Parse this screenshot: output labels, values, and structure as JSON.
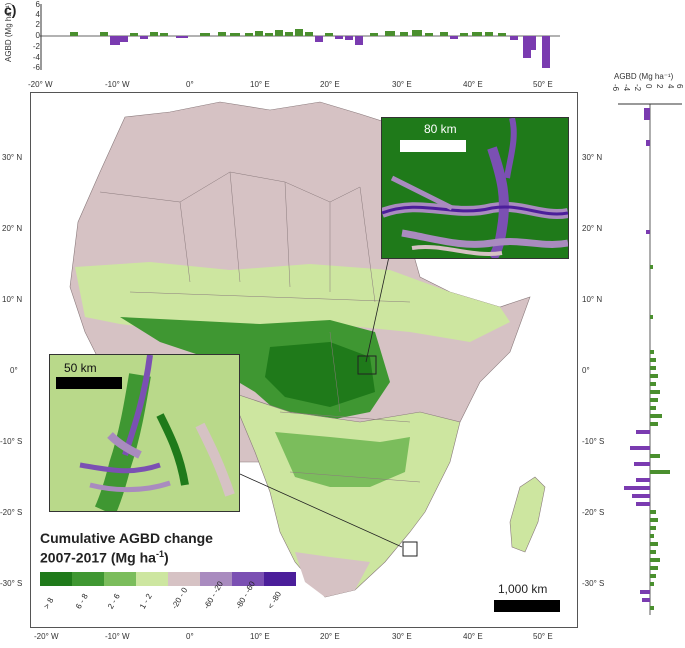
{
  "panel_label": "c)",
  "top_hist": {
    "ylabel": "AGBD (Mg ha⁻¹)",
    "yticks": [
      "6",
      "4",
      "2",
      "0",
      "-2",
      "-4",
      "-6"
    ]
  },
  "right_hist": {
    "xlabel": "AGBD (Mg ha⁻¹)",
    "xticks": [
      "-6",
      "-4",
      "-2",
      "0",
      "2",
      "4",
      "6"
    ]
  },
  "map": {
    "lon_ticks": [
      "-20° W",
      "-10° W",
      "0°",
      "10° E",
      "20° E",
      "30° E",
      "40° E",
      "50° E"
    ],
    "lat_ticks": [
      "30° N",
      "20° N",
      "10° N",
      "0°",
      "-10° S",
      "-20° S",
      "-30° S"
    ],
    "legend": {
      "title_line1": "Cumulative AGBD change",
      "title_line2": "2007-2017 (Mg ha",
      "title_sup": "-1",
      "title_end": ")",
      "classes": [
        {
          "label": "> 8",
          "color": "#1f7a1a"
        },
        {
          "label": "6 - 8",
          "color": "#3f9732"
        },
        {
          "label": "2 - 6",
          "color": "#7bbd5c"
        },
        {
          "label": "1 - 2",
          "color": "#cde6a0"
        },
        {
          "label": "-20 - 0",
          "color": "#d6c2c4"
        },
        {
          "label": "-60 - -20",
          "color": "#a98bbf"
        },
        {
          "label": "-80 - -60",
          "color": "#7b50b3"
        },
        {
          "label": "< -80",
          "color": "#4b1e9a"
        }
      ]
    },
    "inset_top_scale": "80 km",
    "inset_left_scale": "50 km",
    "map_scale": "1,000 km"
  },
  "colors": {
    "green": "#4a8f2e",
    "purple": "#7a3bb0",
    "land": "#d6c2c4",
    "forest": "#1f7a1a",
    "light_green": "#cde6a0"
  }
}
